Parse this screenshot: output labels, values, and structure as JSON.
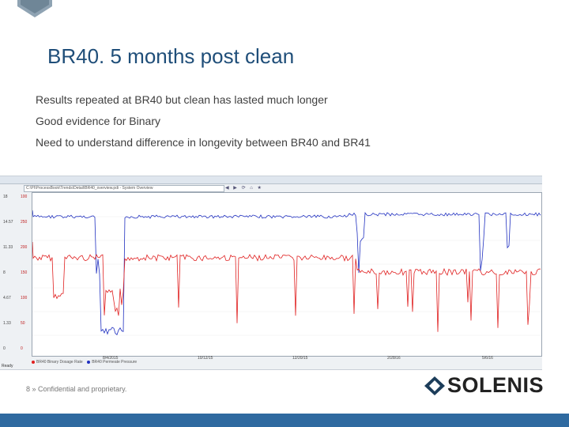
{
  "slide": {
    "title": "BR40. 5 months post clean",
    "bullets": [
      "Results repeated at BR40 but clean has lasted much longer",
      "Good evidence for Binary",
      "Need to understand difference in longevity between BR40 and BR41"
    ],
    "footer": "8 » Confidential and proprietary.",
    "logo_text": "SOLENIS"
  },
  "screenshot": {
    "address": "C:\\PI\\ProcessBook\\Trends\\Detail\\BR40_overview.pdi - System Overview",
    "status": "Ready",
    "y_labels": [
      {
        "left": "18",
        "right": "100"
      },
      {
        "left": "14.57",
        "right": "250"
      },
      {
        "left": "11.33",
        "right": "200"
      },
      {
        "left": "8",
        "right": "150"
      },
      {
        "left": "4.67",
        "right": "100"
      },
      {
        "left": "1.33",
        "right": "50"
      },
      {
        "left": "0",
        "right": "0"
      }
    ],
    "x_labels": [
      "8/4/2015",
      "10/12/15",
      "12/20/15",
      "2/28/16",
      "5/6/16"
    ],
    "legend": [
      {
        "label": "BR40 Binary Dosage Rate",
        "color": "#e02020"
      },
      {
        "label": "BR40 Permeate Pressure",
        "color": "#2030c0"
      }
    ]
  },
  "colors": {
    "title": "#1f4e79",
    "band": "#2f6aa0",
    "red_series": "#e02020",
    "blue_series": "#2030c0"
  }
}
